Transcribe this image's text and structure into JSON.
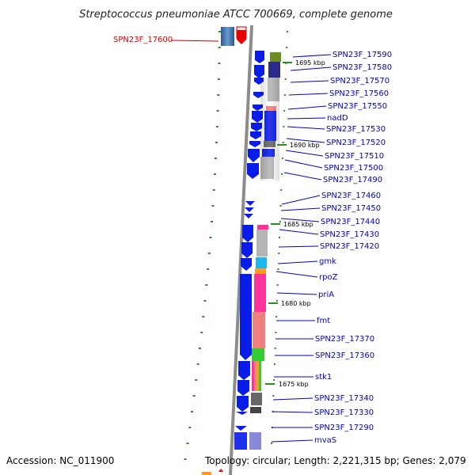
{
  "title": "Streptococcus pneumoniae ATCC 700669, complete genome",
  "footer": {
    "accession": "Accession: NC_011900",
    "topology": "Topology: circular; Length: 2,221,315 bp; Genes: 2,079"
  },
  "kbp_marks": [
    "1695 kbp",
    "1690 kbp",
    "1685 kbp",
    "1680 kbp",
    "1675 kbp"
  ],
  "left_label": "SPN23F_17600",
  "gene_labels": [
    "SPN23F_17590",
    "SPN23F_17580",
    "SPN23F_17570",
    "SPN23F_17560",
    "SPN23F_17550",
    "nadD",
    "SPN23F_17530",
    "SPN23F_17520",
    "SPN23F_17510",
    "SPN23F_17500",
    "SPN23F_17490",
    "SPN23F_17460",
    "SPN23F_17450",
    "SPN23F_17440",
    "SPN23F_17430",
    "SPN23F_17420",
    "gmk",
    "rpoZ",
    "priA",
    "fmt",
    "SPN23F_17370",
    "SPN23F_17360",
    "stk1",
    "SPN23F_17340",
    "SPN23F_17330",
    "SPN23F_17290",
    "mvaS"
  ],
  "colors": {
    "gene_blue": "#0a1de8",
    "label_blue": "#0000cc",
    "label_red": "#dd0000",
    "backbone": "#8c8c8c",
    "tick_green": "#2e8b22",
    "cog_pink": "#ff3399",
    "cog_salmon": "#f08080",
    "cog_gray": "#b5b5b5",
    "cog_navy": "#2a2a8a",
    "cog_olive": "#6b8e23",
    "cog_cyan": "#1ab8f0",
    "cog_orange": "#ff9922",
    "cog_green": "#33cc33",
    "cog_lavender": "#8888dd"
  }
}
